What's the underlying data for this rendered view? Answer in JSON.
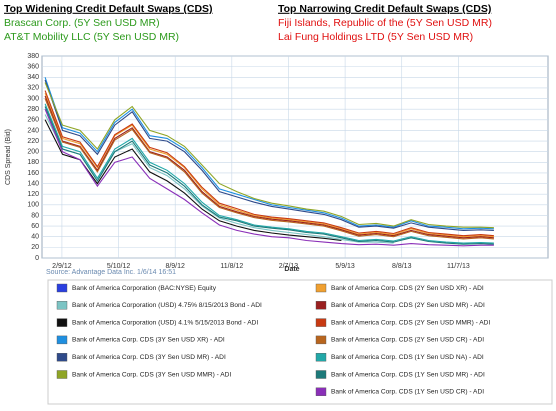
{
  "widening": {
    "title": "Top Widening Credit Default Swaps (CDS)",
    "items": [
      "Brascan Corp. (5Y Sen USD MR)",
      "AT&T Mobility LLC (5Y Sen USD MR)"
    ]
  },
  "narrowing": {
    "title": "Top Narrowing Credit Default Swaps (CDS)",
    "items": [
      "Fiji Islands, Republic of the (5Y Sen USD MR)",
      "Lai Fung Holdings LTD (5Y Sen USD MR)"
    ]
  },
  "chart_data": {
    "type": "line",
    "source": "Source: Advantage Data Inc. 1/6/14 16:51",
    "xlabel": "Date",
    "ylabel": "CDS Spread (Bid)",
    "grid": true,
    "xlim": [
      "1/8/12",
      "3/31/14"
    ],
    "xticks": [
      "2/9/12",
      "5/10/12",
      "8/9/12",
      "11/8/12",
      "2/7/13",
      "5/9/13",
      "8/8/13",
      "11/7/13"
    ],
    "ylim": [
      0,
      380
    ],
    "yticks": [
      0,
      20,
      40,
      60,
      80,
      100,
      120,
      140,
      160,
      180,
      200,
      220,
      240,
      260,
      280,
      300,
      320,
      340,
      360,
      380
    ],
    "x": [
      "1/13/12",
      "2/10/12",
      "3/9/12",
      "4/6/12",
      "5/4/12",
      "6/1/12",
      "6/29/12",
      "7/27/12",
      "8/24/12",
      "9/21/12",
      "10/19/12",
      "11/16/12",
      "12/14/12",
      "1/11/13",
      "2/8/13",
      "3/8/13",
      "4/5/13",
      "5/3/13",
      "5/31/13",
      "6/28/13",
      "7/26/13",
      "8/23/13",
      "9/20/13",
      "10/18/13",
      "11/15/13",
      "12/13/13",
      "1/3/14"
    ],
    "series": [
      {
        "name": "Bank of America Corporation (BAC:NYSE) Equity",
        "color": "#2a3fe0"
      },
      {
        "name": "Bank of America Corporation (USD) 4.75% 8/15/2013 Bond - ADI",
        "color": "#7cc4c4",
        "values": [
          270,
          205,
          195,
          150,
          200,
          215,
          170,
          155,
          130,
          98,
          75,
          65,
          57,
          52,
          48,
          44,
          40,
          35,
          30,
          30,
          28,
          null,
          null,
          null,
          null,
          null,
          null
        ]
      },
      {
        "name": "Bank of America Corporation (USD) 4.1% 5/15/2013 Bond - ADI",
        "color": "#111111",
        "values": [
          260,
          195,
          185,
          140,
          190,
          205,
          162,
          145,
          122,
          92,
          70,
          60,
          52,
          47,
          43,
          40,
          37,
          33,
          null,
          null,
          null,
          null,
          null,
          null,
          null,
          null,
          null
        ]
      },
      {
        "name": "Bank of America Corp. CDS (3Y Sen USD XR) - ADI",
        "color": "#1f8fe0",
        "values": [
          340,
          245,
          235,
          200,
          255,
          280,
          230,
          225,
          205,
          170,
          130,
          120,
          110,
          100,
          95,
          90,
          85,
          75,
          60,
          62,
          58,
          70,
          60,
          58,
          55,
          56,
          55
        ]
      },
      {
        "name": "Bank of America Corp. CDS (3Y Sen USD MR) - ADI",
        "color": "#2f4a8a",
        "values": [
          335,
          240,
          230,
          195,
          250,
          275,
          225,
          220,
          200,
          165,
          125,
          115,
          105,
          97,
          92,
          87,
          82,
          72,
          58,
          60,
          56,
          66,
          58,
          55,
          52,
          53,
          52
        ]
      },
      {
        "name": "Bank of America Corp. CDS (3Y Sen USD MMR) - ADI",
        "color": "#8fa526",
        "values": [
          330,
          250,
          240,
          205,
          260,
          285,
          240,
          230,
          210,
          175,
          140,
          125,
          112,
          103,
          98,
          92,
          88,
          78,
          63,
          65,
          60,
          72,
          63,
          60,
          58,
          58,
          57
        ]
      },
      {
        "name": "Bank of America Corp. CDS (2Y Sen USD XR) - ADI",
        "color": "#f0a030",
        "values": [
          310,
          225,
          215,
          170,
          230,
          250,
          205,
          195,
          170,
          130,
          100,
          90,
          80,
          75,
          72,
          68,
          64,
          55,
          45,
          48,
          44,
          55,
          46,
          43,
          40,
          42,
          40
        ]
      },
      {
        "name": "Bank of America Corp. CDS (2Y Sen USD MR) - ADI",
        "color": "#9a2020",
        "values": [
          305,
          220,
          210,
          165,
          225,
          245,
          200,
          190,
          165,
          125,
          97,
          87,
          78,
          73,
          70,
          66,
          62,
          53,
          43,
          46,
          42,
          52,
          44,
          41,
          38,
          40,
          38
        ]
      },
      {
        "name": "Bank of America Corp. CDS (2Y Sen USD MMR) - ADI",
        "color": "#c83a12",
        "values": [
          315,
          228,
          218,
          172,
          232,
          252,
          208,
          198,
          172,
          133,
          103,
          93,
          82,
          77,
          74,
          70,
          66,
          57,
          47,
          50,
          46,
          57,
          48,
          45,
          42,
          44,
          42
        ]
      },
      {
        "name": "Bank of America Corp. CDS (2Y Sen USD CR) - ADI",
        "color": "#b8651e",
        "values": [
          300,
          218,
          208,
          162,
          222,
          242,
          198,
          188,
          162,
          122,
          95,
          85,
          76,
          71,
          68,
          64,
          60,
          51,
          41,
          44,
          40,
          50,
          42,
          39,
          36,
          38,
          36
        ]
      },
      {
        "name": "Bank of America Corp. CDS (1Y Sen USD NA) - ADI",
        "color": "#22a8a8",
        "values": [
          290,
          210,
          200,
          150,
          205,
          225,
          180,
          165,
          140,
          105,
          80,
          72,
          62,
          58,
          55,
          50,
          47,
          40,
          33,
          35,
          32,
          40,
          33,
          30,
          28,
          29,
          28
        ]
      },
      {
        "name": "Bank of America Corp. CDS (1Y Sen USD MR) - ADI",
        "color": "#1d7a7a",
        "values": [
          285,
          205,
          195,
          145,
          200,
          220,
          175,
          160,
          135,
          100,
          77,
          70,
          60,
          56,
          53,
          48,
          45,
          38,
          31,
          33,
          30,
          38,
          31,
          28,
          26,
          27,
          26
        ]
      },
      {
        "name": "Bank of America Corp. CDS (1Y Sen USD CR) - ADI",
        "color": "#8a2fb8",
        "values": [
          280,
          200,
          185,
          135,
          180,
          190,
          150,
          130,
          110,
          85,
          62,
          52,
          45,
          40,
          38,
          33,
          30,
          27,
          25,
          26,
          24,
          27,
          25,
          24,
          23,
          24,
          24
        ]
      }
    ]
  }
}
